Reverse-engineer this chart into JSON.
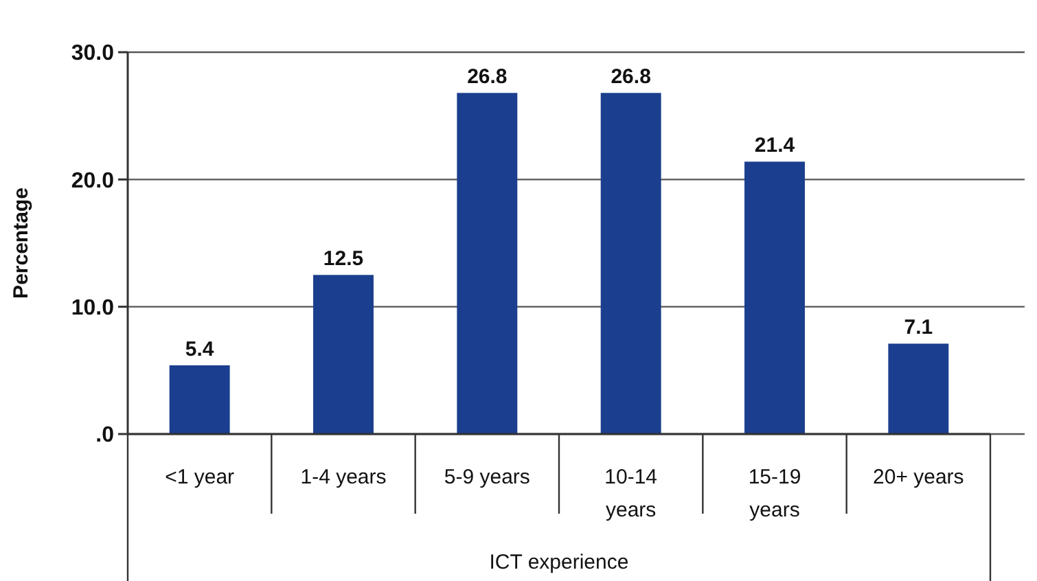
{
  "chart_data": {
    "type": "bar",
    "xlabel": "ICT experience",
    "ylabel": "Percentage",
    "categories": [
      "<1 year",
      "1-4 years",
      "5-9 years",
      "10-14 years",
      "15-19 years",
      "20+ years"
    ],
    "values": [
      5.4,
      12.5,
      26.8,
      26.8,
      21.4,
      7.1
    ],
    "color": "#1b3f8e",
    "ylim": [
      0,
      30
    ],
    "yticks": [
      {
        "value": 0,
        "label": ".0"
      },
      {
        "value": 10,
        "label": "10.0"
      },
      {
        "value": 20,
        "label": "20.0"
      },
      {
        "value": 30,
        "label": "30.0"
      }
    ],
    "grid": "y",
    "data_labels": true
  }
}
